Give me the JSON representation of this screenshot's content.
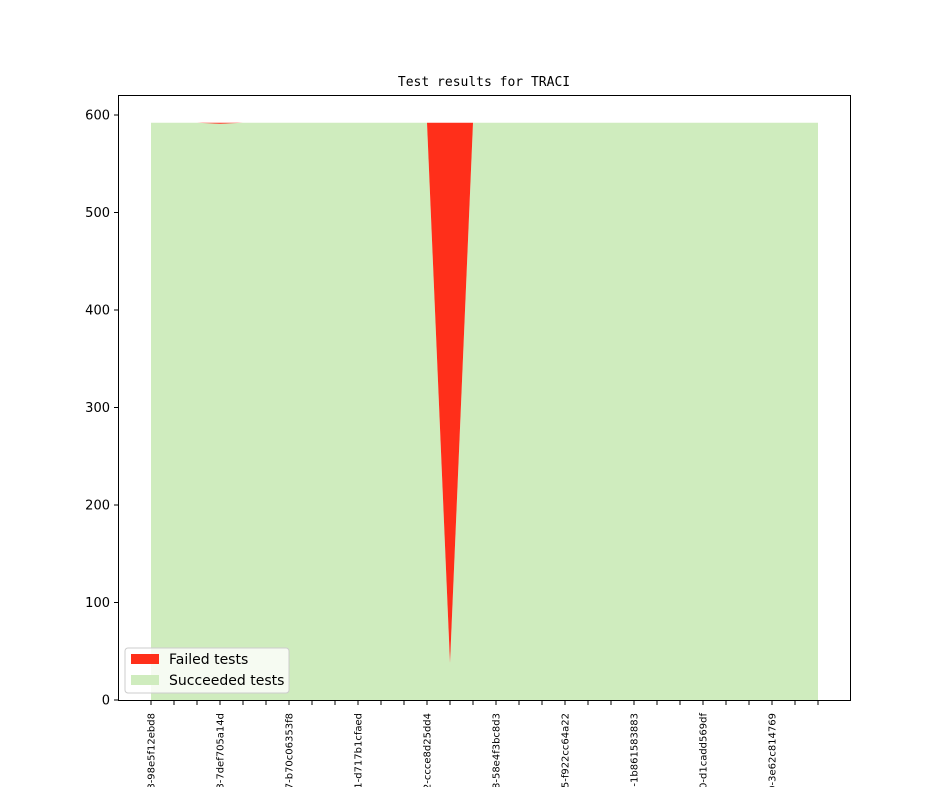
{
  "chart_data": {
    "type": "area",
    "stacked": true,
    "title": "Test results for TRACI",
    "xlabel": "",
    "ylabel": "",
    "ylim": [
      0,
      620
    ],
    "yticks": [
      0,
      100,
      200,
      300,
      400,
      500,
      600
    ],
    "grid": false,
    "legend_position": "bottom-left",
    "x_count": 30,
    "tick_labels": [
      {
        "index": 0,
        "label": "8-98e5f12ebd8"
      },
      {
        "index": 3,
        "label": "8-7def705a14d"
      },
      {
        "index": 6,
        "label": "7-b70c06353f8"
      },
      {
        "index": 9,
        "label": "1-d717b1cfaed"
      },
      {
        "index": 12,
        "label": "2-ccce8d25dd4"
      },
      {
        "index": 15,
        "label": "8-58e4f3bc8d3"
      },
      {
        "index": 18,
        "label": "5-f922cc64a22"
      },
      {
        "index": 21,
        "label": "5-1b861583883"
      },
      {
        "index": 24,
        "label": "0-d1cadd569df"
      },
      {
        "index": 27,
        "label": "0-3e62c814769"
      }
    ],
    "series": [
      {
        "name": "Succeeded tests",
        "color": "#cfecbe",
        "values": [
          592,
          592,
          592,
          591,
          592,
          592,
          592,
          592,
          592,
          592,
          592,
          592,
          592,
          38,
          592,
          592,
          592,
          592,
          592,
          592,
          592,
          592,
          592,
          592,
          592,
          592,
          592,
          592,
          592,
          592
        ]
      },
      {
        "name": "Failed tests",
        "color": "#ff2f1a",
        "values": [
          0,
          0,
          0,
          1,
          0,
          0,
          0,
          0,
          0,
          0,
          0,
          0,
          0,
          554,
          0,
          0,
          0,
          0,
          0,
          0,
          0,
          0,
          0,
          0,
          0,
          0,
          0,
          0,
          0,
          0
        ]
      }
    ]
  }
}
